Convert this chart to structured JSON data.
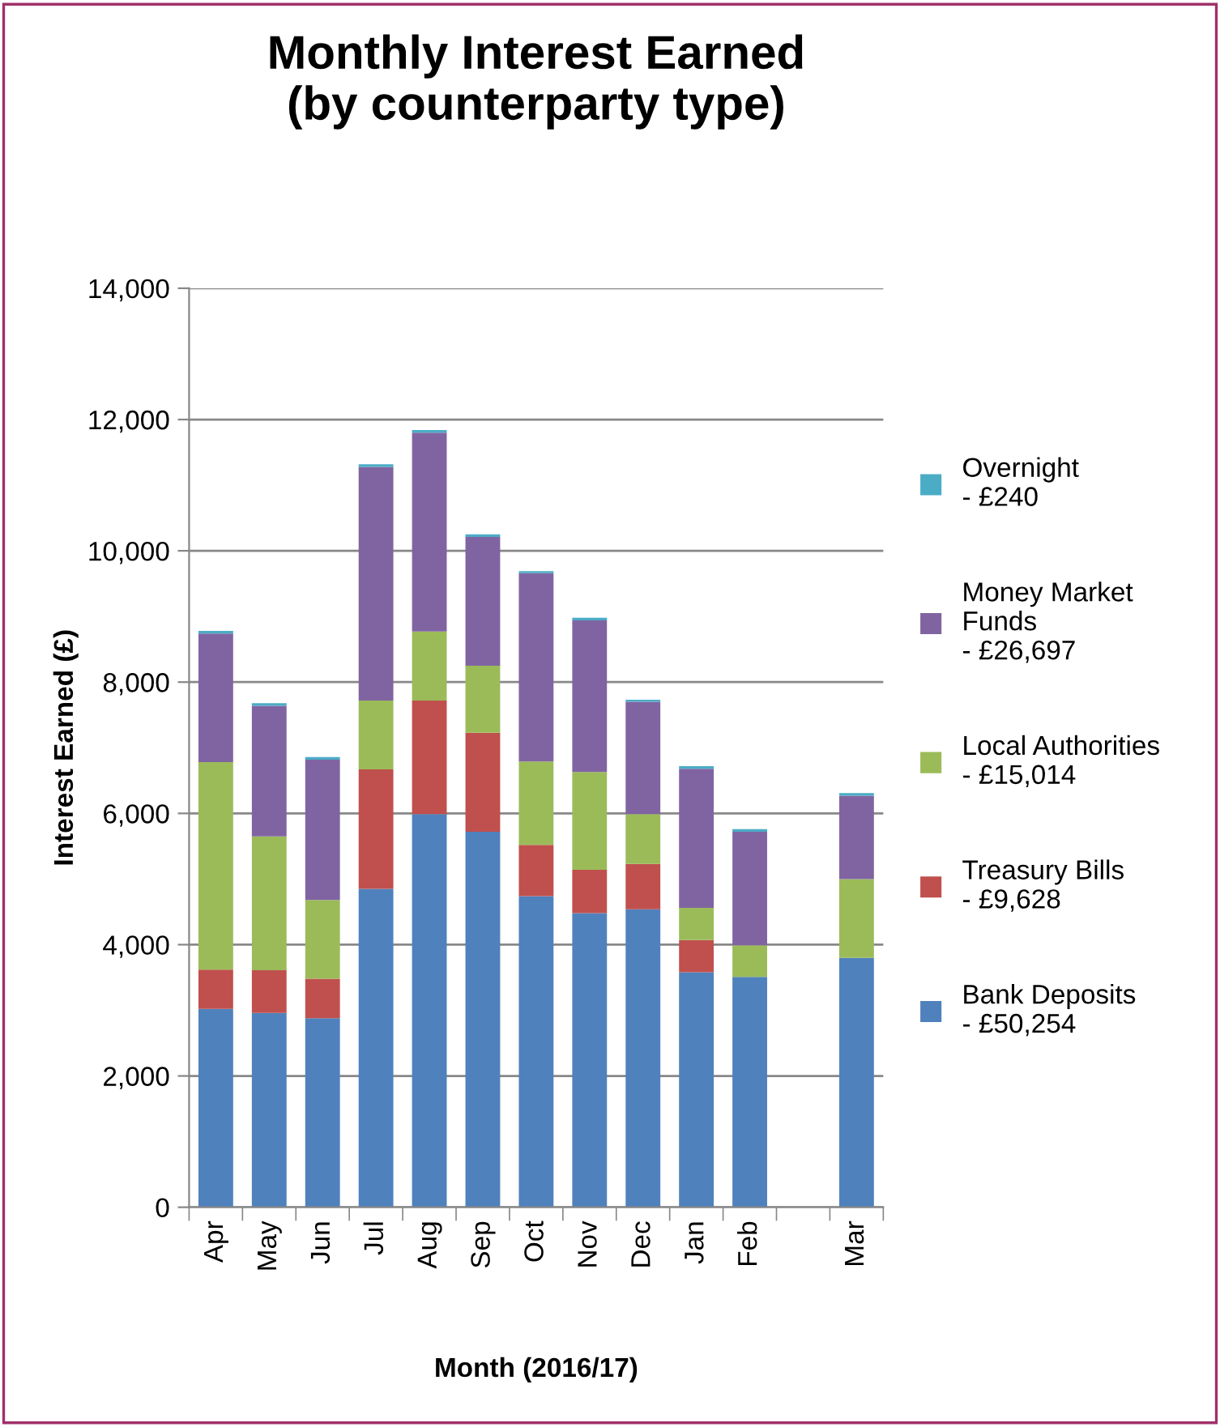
{
  "chart_data": {
    "type": "bar",
    "stacked": true,
    "title": "Monthly Interest Earned\n(by counterparty type)",
    "xlabel": "Month (2016/17)",
    "ylabel": "Interest Earned (£)",
    "categories": [
      "Apr",
      "May",
      "Jun",
      "Jul",
      "Aug",
      "Sep",
      "Oct",
      "Nov",
      "Dec",
      "Jan",
      "Feb",
      null,
      "Mar"
    ],
    "series": [
      {
        "name": "Bank Deposits\n- £50,254",
        "color": "#4f81bd",
        "values": [
          3020,
          2960,
          2880,
          4850,
          5990,
          5720,
          4740,
          4480,
          4540,
          3580,
          3510,
          null,
          3800
        ]
      },
      {
        "name": "Treasury Bills\n- £9,628",
        "color": "#c0504d",
        "values": [
          600,
          650,
          600,
          1820,
          1730,
          1510,
          780,
          660,
          690,
          490,
          0,
          null,
          0
        ]
      },
      {
        "name": "Local Authorities\n- £15,014",
        "color": "#9bbb59",
        "values": [
          3160,
          2040,
          1200,
          1050,
          1050,
          1020,
          1270,
          1490,
          760,
          490,
          480,
          null,
          1200
        ]
      },
      {
        "name": "Money Market\nFunds\n- £26,697",
        "color": "#8064a2",
        "values": [
          1960,
          1990,
          2140,
          3560,
          3030,
          1960,
          2870,
          2310,
          1710,
          2120,
          1730,
          null,
          1270
        ]
      },
      {
        "name": "Overnight\n- £240",
        "color": "#4bacc6",
        "values": [
          40,
          40,
          40,
          40,
          40,
          40,
          30,
          40,
          30,
          40,
          40,
          null,
          40
        ]
      }
    ],
    "ylim": [
      0,
      14000
    ],
    "yticks": [
      {
        "value": 0,
        "label": "0"
      },
      {
        "value": 2000,
        "label": "2,000"
      },
      {
        "value": 4000,
        "label": "4,000"
      },
      {
        "value": 6000,
        "label": "6,000"
      },
      {
        "value": 8000,
        "label": "8,000"
      },
      {
        "value": 10000,
        "label": "10,000"
      },
      {
        "value": 12000,
        "label": "12,000"
      },
      {
        "value": 14000,
        "label": "14,000"
      }
    ],
    "grid": "y",
    "legend": "right"
  }
}
